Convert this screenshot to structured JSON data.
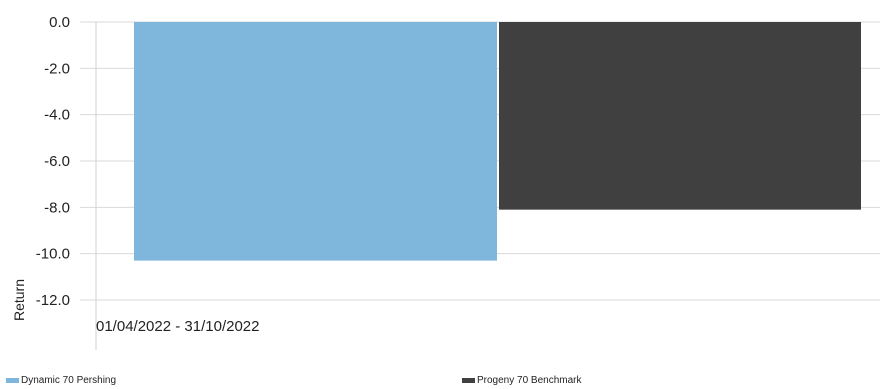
{
  "chart_data": {
    "type": "bar",
    "categories": [
      "01/04/2022 - 31/10/2022"
    ],
    "series": [
      {
        "name": "Dynamic 70 Pershing",
        "values": [
          -10.3
        ],
        "color": "#7fb6dc"
      },
      {
        "name": "Progeny 70 Benchmark",
        "values": [
          -8.1
        ],
        "color": "#404040"
      }
    ],
    "ylabel": "Return",
    "ylim": [
      -12.0,
      0.0
    ],
    "yticks": [
      "0.0",
      "-2.0",
      "-4.0",
      "-6.0",
      "-8.0",
      "-10.0",
      "-12.0"
    ],
    "grid": true,
    "legend_placement": "bottom"
  }
}
